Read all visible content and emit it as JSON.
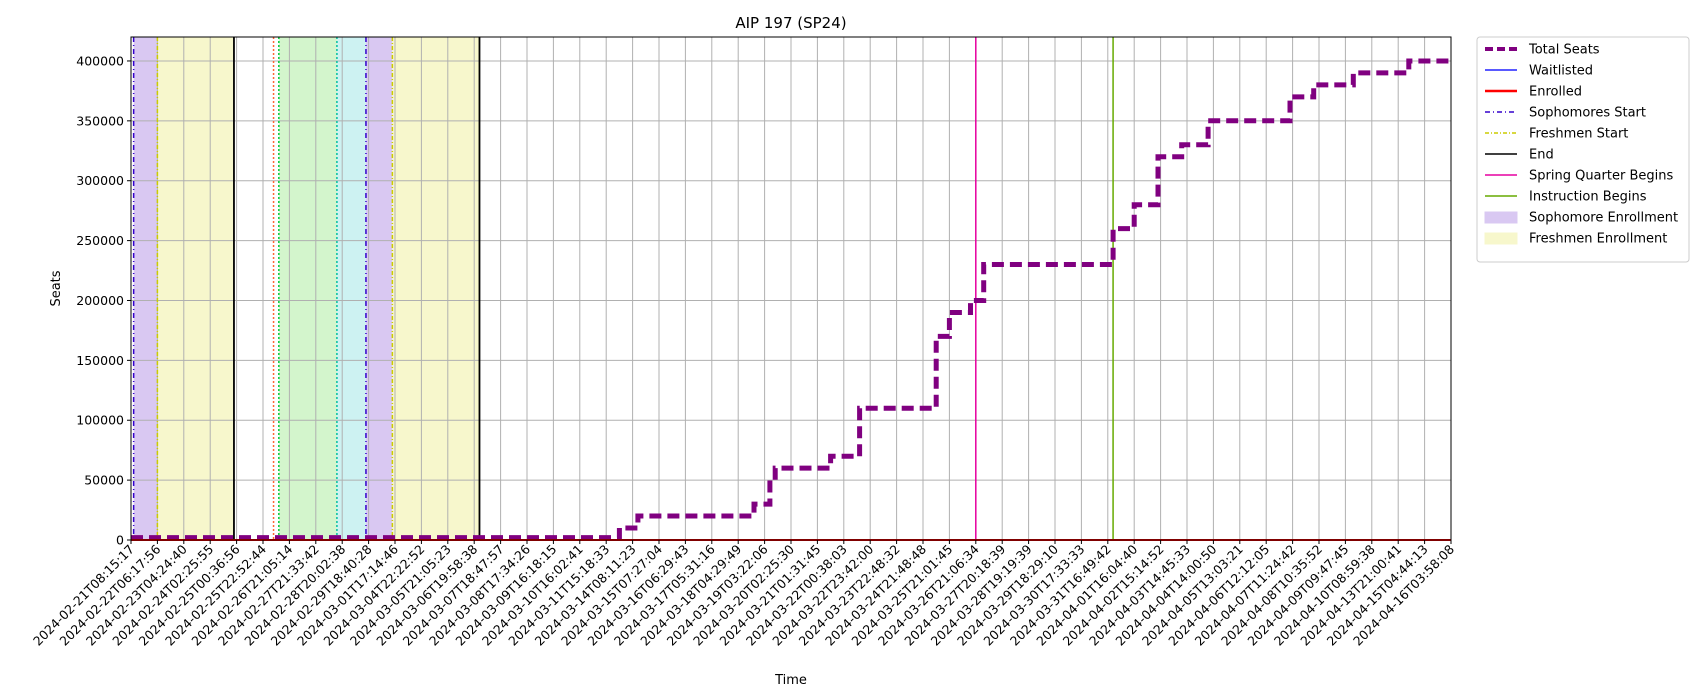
{
  "chart_data": {
    "type": "line",
    "title": "AIP 197 (SP24)",
    "xlabel": "Time",
    "ylabel": "Seats",
    "ylim": [
      0,
      420000
    ],
    "yticks": [
      0,
      50000,
      100000,
      150000,
      200000,
      250000,
      300000,
      350000,
      400000
    ],
    "grid": true,
    "legend_position": "outside-top-right",
    "x_tick_labels": [
      "2024-02-21T08:15:17",
      "2024-02-22T06:17:56",
      "2024-02-23T04:24:40",
      "2024-02-24T02:25:55",
      "2024-02-25T00:36:56",
      "2024-02-25T22:52:44",
      "2024-02-26T21:05:14",
      "2024-02-27T21:33:42",
      "2024-02-28T20:02:38",
      "2024-02-29T18:40:28",
      "2024-03-01T17:14:46",
      "2024-03-04T22:22:52",
      "2024-03-05T21:05:23",
      "2024-03-06T19:58:38",
      "2024-03-07T18:47:57",
      "2024-03-08T17:34:26",
      "2024-03-09T16:18:15",
      "2024-03-10T16:02:41",
      "2024-03-11T15:18:33",
      "2024-03-14T08:11:23",
      "2024-03-15T07:27:04",
      "2024-03-16T06:29:43",
      "2024-03-17T05:31:16",
      "2024-03-18T04:29:49",
      "2024-03-19T03:22:06",
      "2024-03-20T02:25:30",
      "2024-03-21T01:31:45",
      "2024-03-22T00:38:03",
      "2024-03-22T23:42:00",
      "2024-03-23T22:48:32",
      "2024-03-24T21:48:48",
      "2024-03-25T21:01:45",
      "2024-03-26T21:06:34",
      "2024-03-27T20:18:39",
      "2024-03-28T19:19:39",
      "2024-03-29T18:29:10",
      "2024-03-30T17:33:33",
      "2024-03-31T16:49:42",
      "2024-04-01T16:04:40",
      "2024-04-02T15:14:52",
      "2024-04-03T14:45:33",
      "2024-04-04T14:00:50",
      "2024-04-05T13:03:21",
      "2024-04-06T12:12:05",
      "2024-04-07T11:24:42",
      "2024-04-08T10:35:52",
      "2024-04-09T09:47:45",
      "2024-04-10T08:59:38",
      "2024-04-13T21:00:41",
      "2024-04-15T04:44:13",
      "2024-04-16T03:58:08"
    ],
    "series": [
      {
        "name": "Total Seats",
        "color": "#800080",
        "style": "dashed-thick",
        "step_values": [
          [
            0,
            2000
          ],
          [
            18.5,
            2000
          ],
          [
            18.5,
            10000
          ],
          [
            19.2,
            10000
          ],
          [
            19.2,
            20000
          ],
          [
            23.6,
            20000
          ],
          [
            23.6,
            30000
          ],
          [
            24.2,
            30000
          ],
          [
            24.2,
            50000
          ],
          [
            24.4,
            50000
          ],
          [
            24.4,
            60000
          ],
          [
            26.5,
            60000
          ],
          [
            26.5,
            70000
          ],
          [
            27.6,
            70000
          ],
          [
            27.6,
            110000
          ],
          [
            30.5,
            110000
          ],
          [
            30.5,
            170000
          ],
          [
            31.0,
            170000
          ],
          [
            31.0,
            190000
          ],
          [
            31.8,
            190000
          ],
          [
            31.8,
            200000
          ],
          [
            32.3,
            200000
          ],
          [
            32.3,
            230000
          ],
          [
            37.2,
            230000
          ],
          [
            37.2,
            260000
          ],
          [
            38.0,
            260000
          ],
          [
            38.0,
            280000
          ],
          [
            38.9,
            280000
          ],
          [
            38.9,
            320000
          ],
          [
            39.8,
            320000
          ],
          [
            39.8,
            330000
          ],
          [
            40.8,
            330000
          ],
          [
            40.8,
            350000
          ],
          [
            43.9,
            350000
          ],
          [
            43.9,
            370000
          ],
          [
            44.8,
            370000
          ],
          [
            44.8,
            380000
          ],
          [
            46.3,
            380000
          ],
          [
            46.3,
            390000
          ],
          [
            48.4,
            390000
          ],
          [
            48.4,
            400000
          ],
          [
            50.0,
            400000
          ]
        ]
      },
      {
        "name": "Waitlisted",
        "color": "#0000ff",
        "value": 0
      },
      {
        "name": "Enrolled",
        "color": "#ff0000",
        "value": 0
      }
    ],
    "vertical_markers": [
      {
        "name": "Sophomores Start",
        "color": "#3300cc",
        "x": [
          0.1,
          8.9
        ]
      },
      {
        "name": "Freshmen Start",
        "color": "#cccc00",
        "x": [
          1.0,
          9.9
        ]
      },
      {
        "name": "End",
        "color": "#000000",
        "x": [
          3.9,
          13.2
        ]
      },
      {
        "name": "Spring Quarter Begins",
        "color": "#e600a0",
        "x": [
          32.0
        ]
      },
      {
        "name": "Instruction Begins",
        "color": "#66aa00",
        "x": [
          37.2
        ]
      },
      {
        "name": "",
        "color": "#ff6633",
        "x": [
          5.4
        ]
      },
      {
        "name": "",
        "color": "#00cc33",
        "x": [
          5.6
        ]
      },
      {
        "name": "",
        "color": "#00bfa0",
        "x": [
          7.8
        ]
      }
    ],
    "shaded_regions": [
      {
        "name": "Sophomore Enrollment",
        "color": "#d9c8f2",
        "ranges": [
          [
            0.1,
            1.0
          ],
          [
            8.9,
            9.9
          ]
        ]
      },
      {
        "name": "Freshmen Enrollment",
        "color": "#f7f7cc",
        "ranges": [
          [
            1.0,
            3.9
          ],
          [
            9.9,
            13.2
          ]
        ]
      },
      {
        "name": "",
        "color": "#d3f5cc",
        "ranges": [
          [
            5.6,
            7.8
          ]
        ]
      },
      {
        "name": "",
        "color": "#cdf2f2",
        "ranges": [
          [
            7.8,
            8.9
          ]
        ]
      }
    ],
    "legend": [
      {
        "label": "Total Seats",
        "kind": "line",
        "color": "#800080",
        "dash": "8,4",
        "width": 4
      },
      {
        "label": "Waitlisted",
        "kind": "line",
        "color": "#2222ff",
        "dash": "",
        "width": 1.5
      },
      {
        "label": "Enrolled",
        "kind": "line",
        "color": "#ff0000",
        "dash": "",
        "width": 2.5
      },
      {
        "label": "Sophomores Start",
        "kind": "line",
        "color": "#3300cc",
        "dash": "5,3,1,3",
        "width": 1.5
      },
      {
        "label": "Freshmen Start",
        "kind": "line",
        "color": "#cccc00",
        "dash": "4,2,1,2",
        "width": 1.5
      },
      {
        "label": "End",
        "kind": "line",
        "color": "#000000",
        "dash": "",
        "width": 1.5
      },
      {
        "label": "Spring Quarter Begins",
        "kind": "line",
        "color": "#e600a0",
        "dash": "",
        "width": 1.5
      },
      {
        "label": "Instruction Begins",
        "kind": "line",
        "color": "#66aa00",
        "dash": "",
        "width": 1.5
      },
      {
        "label": "Sophomore Enrollment",
        "kind": "patch",
        "color": "#d9c8f2"
      },
      {
        "label": "Freshmen Enrollment",
        "kind": "patch",
        "color": "#f7f7cc"
      }
    ]
  }
}
